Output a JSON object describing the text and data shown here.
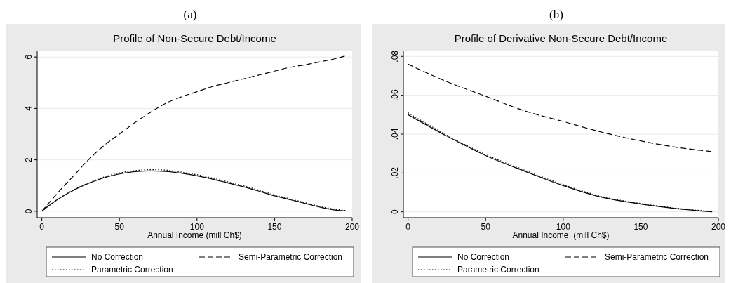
{
  "chart_data": [
    {
      "type": "line",
      "title": "Profile of Non-Secure Debt/Income",
      "annotations": [
        "(a)"
      ],
      "xlabel": "Annual Income (mill Ch$)",
      "x": [
        0,
        10,
        20,
        30,
        40,
        50,
        60,
        70,
        80,
        90,
        100,
        110,
        120,
        130,
        140,
        150,
        160,
        170,
        180,
        190,
        196
      ],
      "xlim": [
        -3,
        200
      ],
      "xticks": [
        0,
        50,
        100,
        150,
        200
      ],
      "ylim": [
        -0.25,
        6.25
      ],
      "yticks": [
        0,
        2,
        4,
        6
      ],
      "grid": "y",
      "legend": "bottom",
      "series": [
        {
          "name": "No Correction",
          "color": "#000000",
          "line_style": "solid",
          "values": [
            0,
            0.45,
            0.8,
            1.08,
            1.3,
            1.45,
            1.54,
            1.57,
            1.55,
            1.48,
            1.38,
            1.25,
            1.1,
            0.95,
            0.78,
            0.6,
            0.45,
            0.3,
            0.15,
            0.04,
            0.01
          ]
        },
        {
          "name": "Semi-Parametric Correction",
          "color": "#000000",
          "line_style": "dashed",
          "values": [
            0,
            0.7,
            1.35,
            2.0,
            2.55,
            3.0,
            3.45,
            3.85,
            4.2,
            4.45,
            4.65,
            4.85,
            5.0,
            5.15,
            5.3,
            5.45,
            5.6,
            5.7,
            5.82,
            5.95,
            6.05
          ]
        },
        {
          "name": "Parametric Correction",
          "color": "#000000",
          "line_style": "dotted",
          "values": [
            0,
            0.46,
            0.82,
            1.1,
            1.33,
            1.49,
            1.58,
            1.62,
            1.6,
            1.52,
            1.42,
            1.29,
            1.14,
            0.99,
            0.82,
            0.64,
            0.48,
            0.33,
            0.18,
            0.07,
            0.03
          ]
        }
      ]
    },
    {
      "type": "line",
      "title": "Profile of Derivative Non-Secure Debt/Income",
      "annotations": [
        "(b)"
      ],
      "xlabel": "Annual Income  (mill Ch$)",
      "x": [
        0,
        25,
        50,
        75,
        100,
        125,
        150,
        175,
        196
      ],
      "xlim": [
        -3,
        200
      ],
      "xticks": [
        0,
        50,
        100,
        150,
        200
      ],
      "ylim": [
        -0.003,
        0.083
      ],
      "yticks": [
        0,
        {
          "value": 0.02,
          "label": ".02"
        },
        {
          "value": 0.04,
          "label": ".04"
        },
        {
          "value": 0.06,
          "label": ".06"
        },
        {
          "value": 0.08,
          "label": ".08"
        }
      ],
      "grid": "y",
      "legend": "bottom",
      "series": [
        {
          "name": "No Correction",
          "color": "#000000",
          "line_style": "solid",
          "values": [
            0.05,
            0.039,
            0.029,
            0.021,
            0.0135,
            0.0075,
            0.004,
            0.0015,
            0
          ]
        },
        {
          "name": "Semi-Parametric Correction",
          "color": "#000000",
          "line_style": "dashed",
          "values": [
            0.076,
            0.067,
            0.0595,
            0.052,
            0.0465,
            0.041,
            0.0365,
            0.033,
            0.031
          ]
        },
        {
          "name": "Parametric Correction",
          "color": "#000000",
          "line_style": "dotted",
          "values": [
            0.051,
            0.0395,
            0.0295,
            0.0215,
            0.014,
            0.0079,
            0.0043,
            0.0017,
            0.0002
          ]
        }
      ]
    }
  ]
}
